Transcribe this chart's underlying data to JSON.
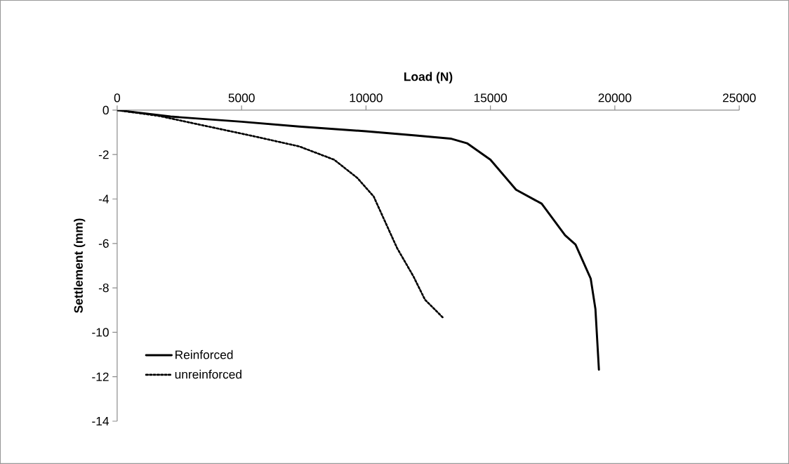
{
  "chart_data": {
    "type": "line",
    "xlabel": "Load (N)",
    "ylabel": "Settlement (mm)",
    "xlim": [
      0,
      25000
    ],
    "xticks": [
      0,
      5000,
      10000,
      15000,
      20000,
      25000
    ],
    "ylim": [
      -14,
      0
    ],
    "yticks": [
      -14,
      -12,
      -10,
      -8,
      -6,
      -4,
      -2,
      0
    ],
    "grid": false,
    "legend": "bottom left",
    "marker": "none",
    "series": [
      {
        "name": "Reinforced",
        "color": "#000000",
        "line_style": "solid",
        "x": [
          0,
          2150,
          5000,
          7310,
          10000,
          12000,
          13400,
          14060,
          15000,
          16030,
          17060,
          18000,
          18420,
          19030,
          19220,
          19360
        ],
        "values": [
          0,
          -0.29,
          -0.52,
          -0.74,
          -0.95,
          -1.14,
          -1.28,
          -1.49,
          -2.23,
          -3.58,
          -4.21,
          -5.63,
          -6.05,
          -7.58,
          -8.95,
          -11.68
        ]
      },
      {
        "name": "unreinforced",
        "color": "#000000",
        "line_style": "dotted",
        "x": [
          0,
          1680,
          3550,
          5430,
          7310,
          8720,
          9650,
          10310,
          10780,
          11250,
          11900,
          12370,
          13120
        ],
        "values": [
          0,
          -0.26,
          -0.71,
          -1.16,
          -1.63,
          -2.23,
          -3.05,
          -3.89,
          -5.05,
          -6.21,
          -7.47,
          -8.53,
          -9.37
        ]
      }
    ]
  }
}
